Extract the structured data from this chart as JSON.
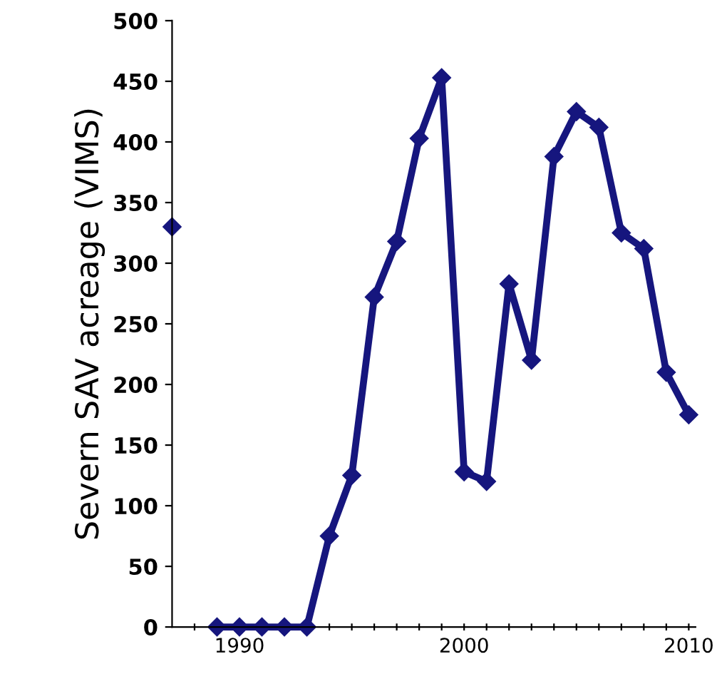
{
  "chart_data": {
    "type": "line",
    "ylabel": "Severn SAV acreage (VIMS)",
    "x": [
      1987,
      1988,
      1989,
      1990,
      1991,
      1992,
      1993,
      1994,
      1995,
      1996,
      1997,
      1998,
      1999,
      2000,
      2001,
      2002,
      2003,
      2004,
      2005,
      2006,
      2007,
      2008,
      2009,
      2010
    ],
    "series": [
      {
        "color": "#16167e",
        "values": [
          330,
          null,
          0,
          0,
          0,
          0,
          0,
          75,
          125,
          272,
          318,
          403,
          453,
          128,
          120,
          283,
          220,
          388,
          425,
          412,
          325,
          312,
          210,
          175
        ]
      }
    ],
    "xlim": [
      1987,
      2010.3
    ],
    "ylim": [
      0,
      500
    ],
    "xticks": [
      {
        "value": 1988,
        "label": null
      },
      {
        "value": 1989,
        "label": null
      },
      1990,
      {
        "value": 1991,
        "label": null
      },
      {
        "value": 1992,
        "label": null
      },
      {
        "value": 1993,
        "label": null
      },
      {
        "value": 1994,
        "label": null
      },
      {
        "value": 1995,
        "label": null
      },
      {
        "value": 1996,
        "label": null
      },
      {
        "value": 1997,
        "label": null
      },
      {
        "value": 1998,
        "label": null
      },
      {
        "value": 1999,
        "label": null
      },
      2000,
      {
        "value": 2001,
        "label": null
      },
      {
        "value": 2002,
        "label": null
      },
      {
        "value": 2003,
        "label": null
      },
      {
        "value": 2004,
        "label": null
      },
      {
        "value": 2005,
        "label": null
      },
      {
        "value": 2006,
        "label": null
      },
      {
        "value": 2007,
        "label": null
      },
      {
        "value": 2008,
        "label": null
      },
      {
        "value": 2009,
        "label": null
      },
      2010
    ],
    "yticks": [
      0,
      50,
      100,
      150,
      200,
      250,
      300,
      350,
      400,
      450,
      500
    ],
    "marker": "diamond",
    "line_style": "solid",
    "grid": false,
    "legend": false
  }
}
